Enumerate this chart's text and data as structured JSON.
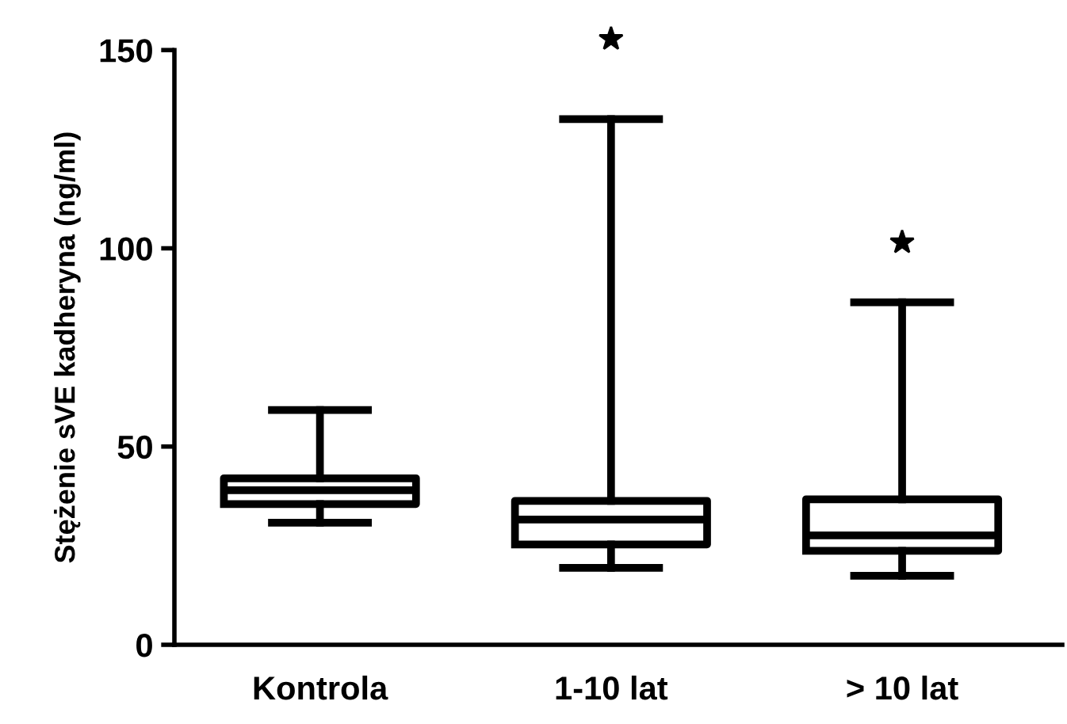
{
  "chart_data": {
    "type": "box",
    "ylabel": "Stężenie sVE kadheryna (ng/ml)",
    "categories": [
      "Kontrola",
      "1-10 lat",
      "> 10 lat"
    ],
    "boxes": [
      {
        "low": 30.8,
        "q1": 35.5,
        "median": 39,
        "q3": 42,
        "high": 59.2
      },
      {
        "low": 19.4,
        "q1": 25.3,
        "median": 31.6,
        "q3": 36.3,
        "high": 132.6,
        "outliers": [
          152.8
        ]
      },
      {
        "low": 17.4,
        "q1": 23.7,
        "median": 27.6,
        "q3": 36.7,
        "high": 86.4,
        "outliers": [
          101.5
        ]
      }
    ],
    "ylim": [
      0,
      150
    ],
    "yticks": [
      0,
      50,
      100,
      150
    ],
    "color": "#000000",
    "marker": "star",
    "grid": false
  }
}
